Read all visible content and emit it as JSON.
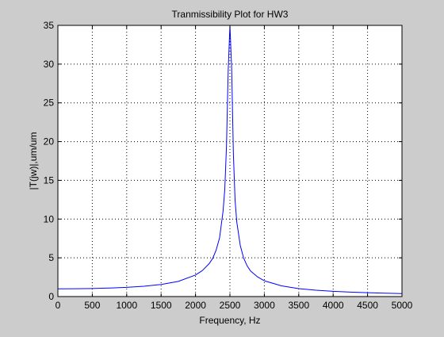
{
  "chart_data": {
    "type": "line",
    "title": "Tranmissibility Plot for HW3",
    "xlabel": "Frequency, Hz",
    "ylabel": "|T(jw)|,um/um",
    "xlim": [
      0,
      5000
    ],
    "ylim": [
      0,
      35
    ],
    "xticks": [
      0,
      500,
      1000,
      1500,
      2000,
      2500,
      3000,
      3500,
      4000,
      4500,
      5000
    ],
    "yticks": [
      0,
      5,
      10,
      15,
      20,
      25,
      30,
      35
    ],
    "grid": true,
    "line_color": "#0000ff",
    "series": [
      {
        "x": [
          0,
          250,
          500,
          750,
          1000,
          1250,
          1500,
          1750,
          2000,
          2100,
          2200,
          2250,
          2300,
          2350,
          2400,
          2425,
          2450,
          2475,
          2500,
          2525,
          2550,
          2575,
          2600,
          2650,
          2700,
          2750,
          2800,
          2900,
          3000,
          3250,
          3500,
          3750,
          4000,
          4250,
          4500,
          4750,
          5000
        ],
        "y": [
          1.0,
          1.01,
          1.04,
          1.1,
          1.19,
          1.33,
          1.56,
          1.96,
          2.78,
          3.36,
          4.27,
          4.93,
          6.0,
          7.6,
          11.0,
          13.8,
          19.4,
          29.2,
          35.0,
          29.5,
          18.5,
          12.4,
          9.6,
          6.6,
          4.95,
          3.96,
          3.3,
          2.55,
          2.03,
          1.38,
          1.02,
          0.82,
          0.68,
          0.58,
          0.5,
          0.44,
          0.39
        ]
      }
    ]
  }
}
